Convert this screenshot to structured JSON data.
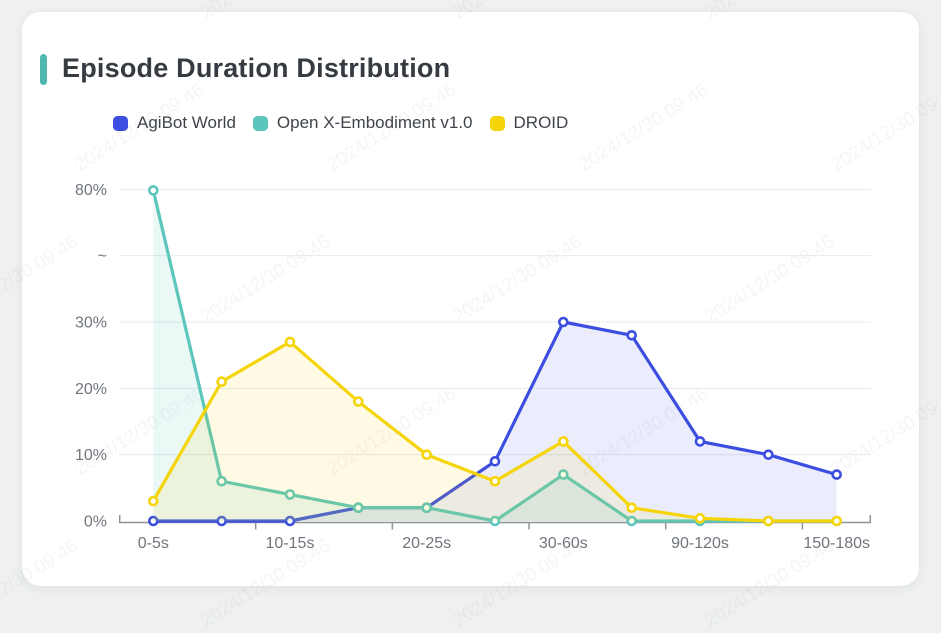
{
  "page": {
    "title": "Episode Duration Distribution"
  },
  "watermark": {
    "text": "2024/12/30 09:46"
  },
  "legend": [
    {
      "label": "AgiBot World",
      "color": "#3b4ee0"
    },
    {
      "label": "Open X-Embodiment v1.0",
      "color": "#5cc6bc"
    },
    {
      "label": "DROID",
      "color": "#f5d50a"
    }
  ],
  "chart_data": {
    "type": "line",
    "title": "Episode Duration Distribution",
    "categories": [
      "0-5s",
      "",
      "10-15s",
      "",
      "20-25s",
      "",
      "30-60s",
      "",
      "90-120s",
      "",
      "150-180s"
    ],
    "x_tick_labels_visible": [
      "0-5s",
      "10-15s",
      "20-25s",
      "30-60s",
      "90-120s",
      "150-180s"
    ],
    "series": [
      {
        "name": "AgiBot World",
        "color": "#3b4ee0",
        "fill_opacity": 0.1,
        "values": [
          0,
          0,
          0,
          2,
          2,
          9,
          30,
          28,
          12,
          10,
          7
        ]
      },
      {
        "name": "Open X-Embodiment v1.0",
        "color": "#5cc6bc",
        "fill_opacity": 0.13,
        "values": [
          79.6,
          6,
          4,
          2,
          2,
          0,
          7,
          0,
          0,
          0,
          0
        ]
      },
      {
        "name": "DROID",
        "color": "#f5d50a",
        "fill_opacity": 0.11,
        "values": [
          3,
          21,
          27,
          18,
          10,
          6,
          12,
          2,
          0.4,
          0,
          0
        ]
      }
    ],
    "y_axis": {
      "unit": "percent",
      "tick_labels": [
        "0%",
        "10%",
        "20%",
        "30%",
        "~",
        "80%"
      ],
      "axis_break": {
        "linear_up_to": 30,
        "resumes_at": 80
      }
    },
    "legend_position": "top",
    "grid": true,
    "area_fill": true
  }
}
